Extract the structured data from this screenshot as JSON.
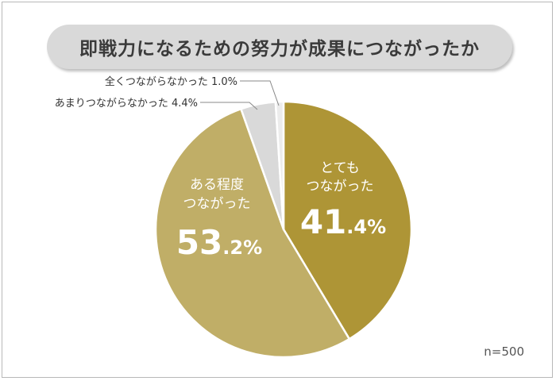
{
  "chart_data": {
    "type": "pie",
    "title": "即戦力になるための努力が成果につながったか",
    "slices": [
      {
        "label": "とてもつながった",
        "value": 41.4,
        "color": "#ae9536"
      },
      {
        "label": "ある程度つながった",
        "value": 53.2,
        "color": "#c0ae67"
      },
      {
        "label": "あまりつながらなかった",
        "value": 4.4,
        "color": "#d9d9d9"
      },
      {
        "label": "全くつながらなかった",
        "value": 1.0,
        "color": "#ececec"
      }
    ],
    "inside_labels": [
      {
        "line1": "とても",
        "line2": "つながった",
        "big": "41",
        "small": ".4%"
      },
      {
        "line1": "ある程度",
        "line2": "つながった",
        "big": "53",
        "small": ".2%"
      }
    ],
    "outside_labels": [
      {
        "text": "全くつながらなかった 1.0%"
      },
      {
        "text": "あまりつながらなかった 4.4%"
      }
    ],
    "note": "n=500"
  }
}
